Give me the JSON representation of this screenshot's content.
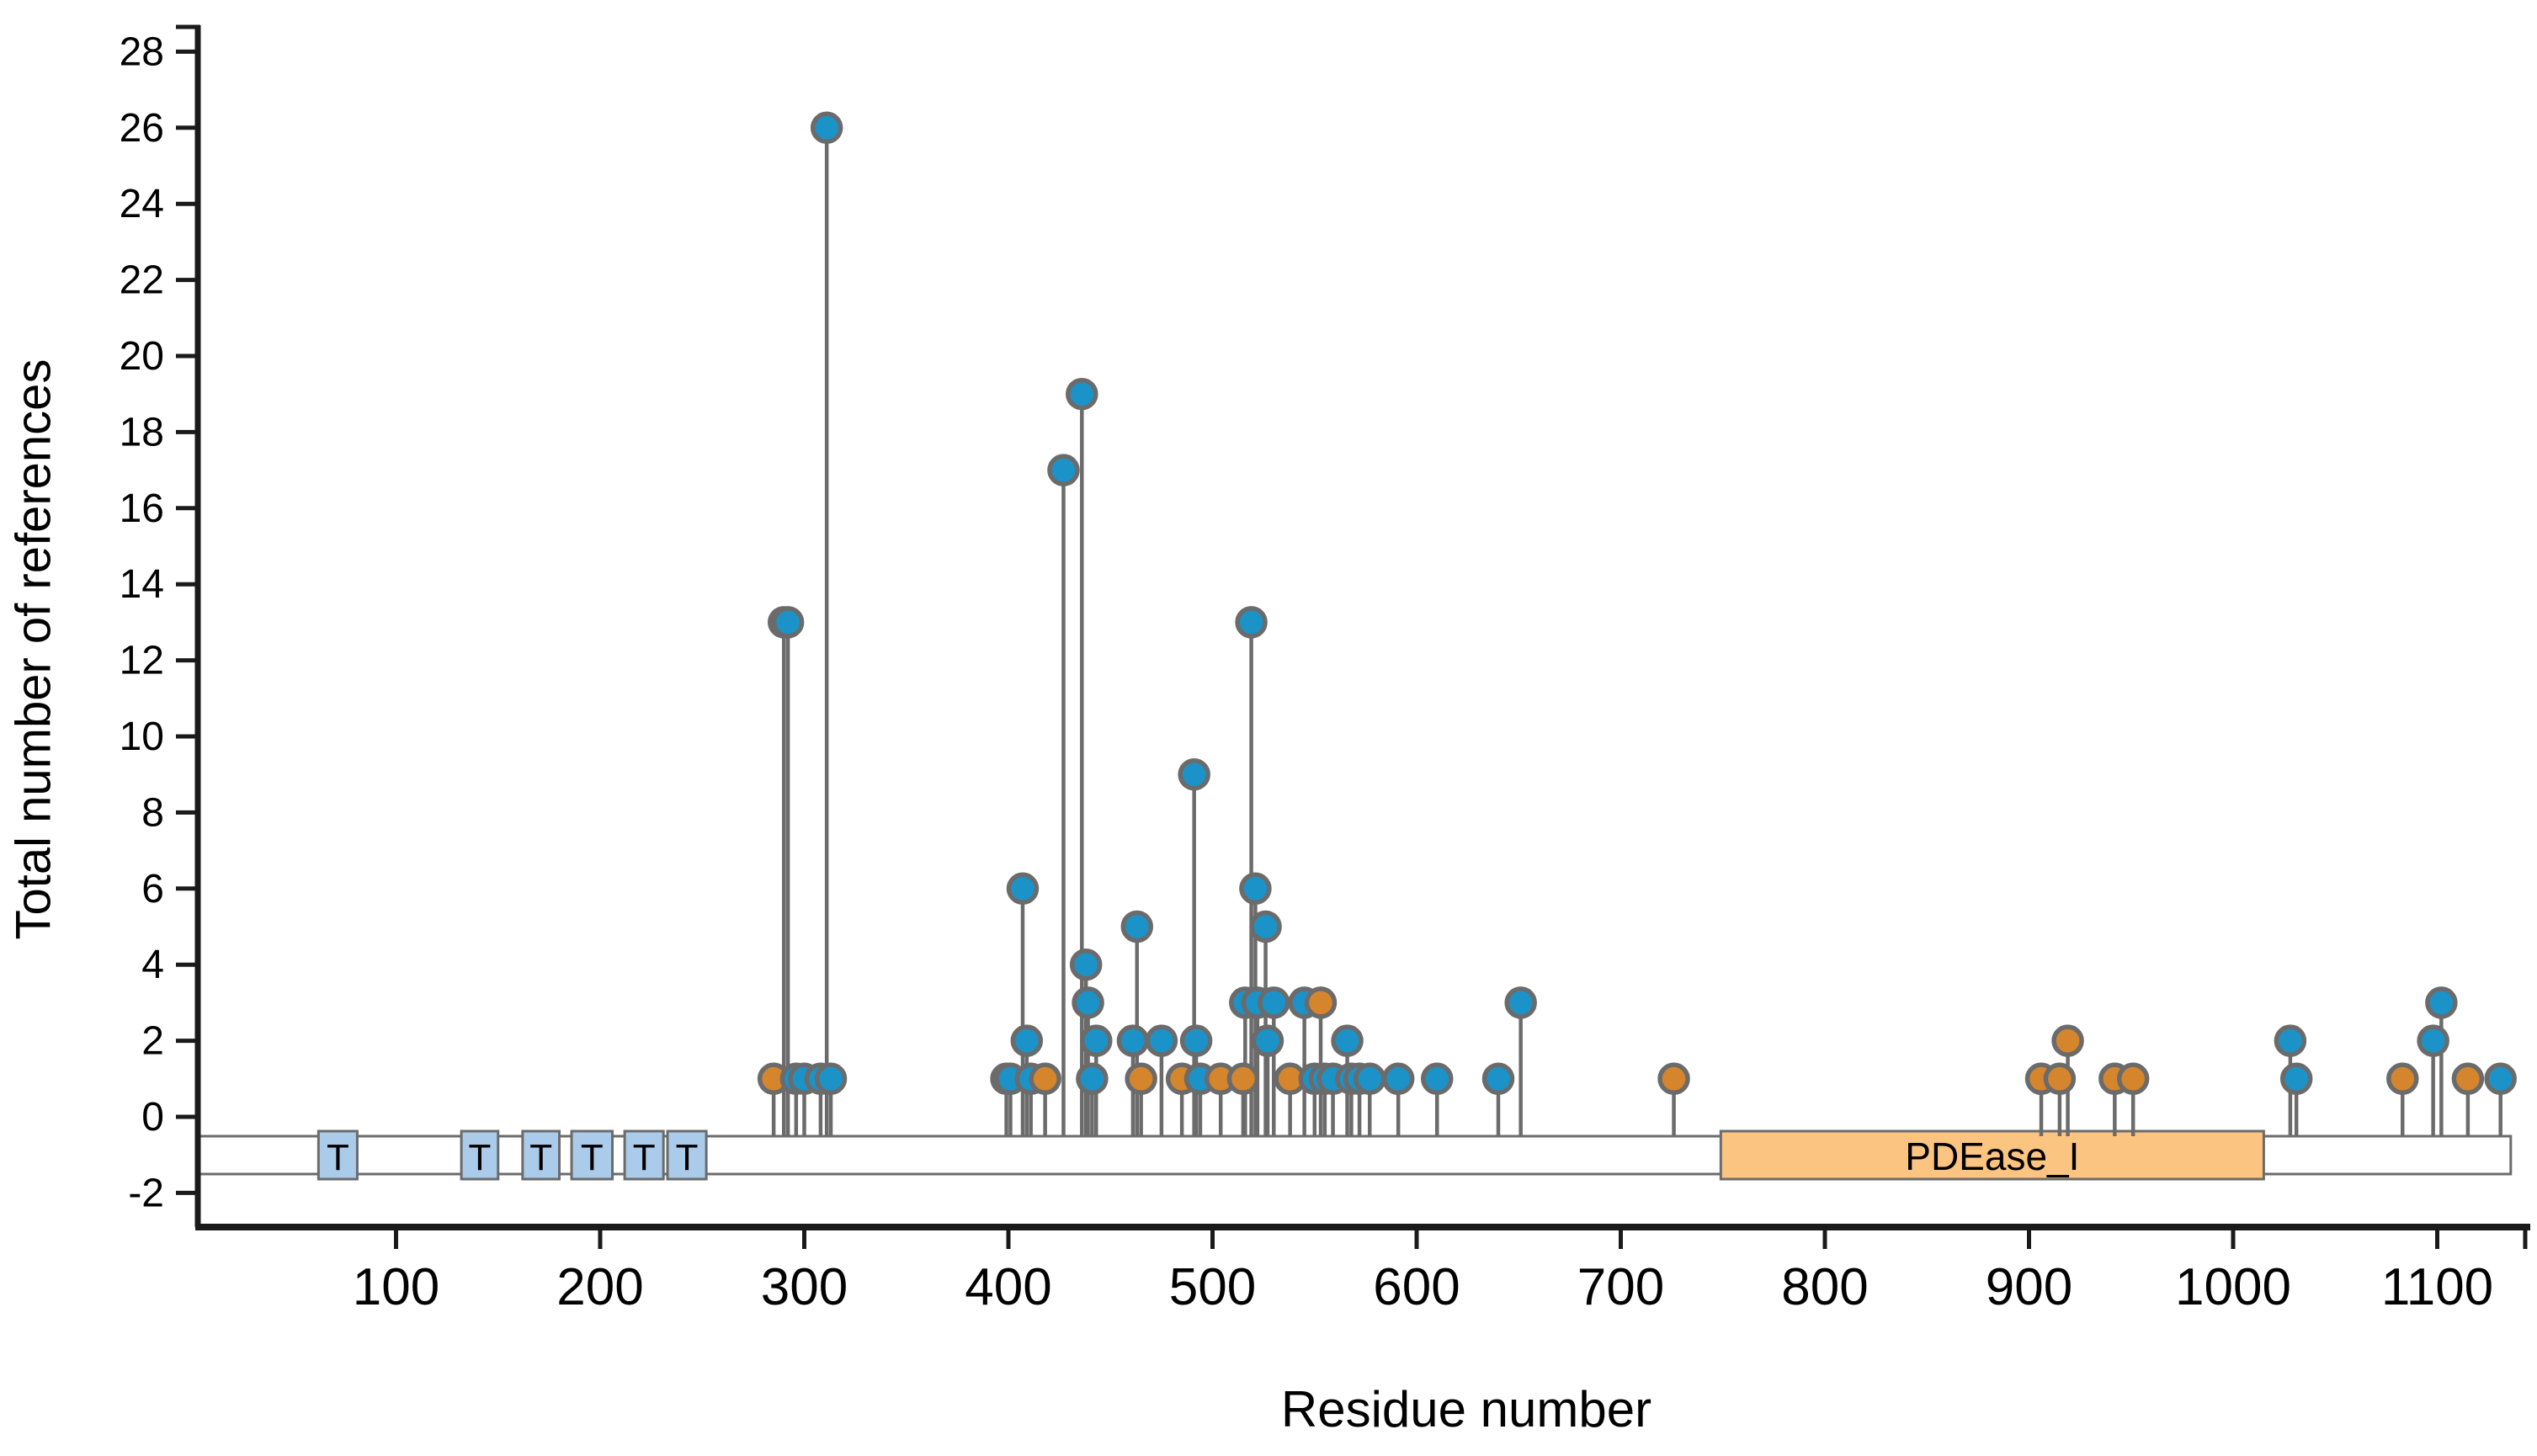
{
  "chart_data": {
    "type": "lollipop",
    "title": "",
    "xlabel": "Residue number",
    "ylabel": "Total number of references",
    "x_ticks": [
      100,
      200,
      300,
      400,
      500,
      600,
      700,
      800,
      900,
      1000,
      1100
    ],
    "y_ticks": [
      -2,
      0,
      2,
      4,
      6,
      8,
      10,
      12,
      14,
      16,
      18,
      20,
      22,
      24,
      26,
      28
    ],
    "xlim": [
      1,
      1145
    ],
    "ylim": [
      -3,
      29
    ],
    "grid": "off",
    "legend": "none",
    "colors": {
      "blue_point": "#1b93c8",
      "orange_point": "#d5862c",
      "stem": "#6b6b6b",
      "point_ring": "#6b6b6b",
      "backbone_fill": "#ffffff",
      "backbone_stroke": "#6b6b6b",
      "t_box_fill": "#aacbe9",
      "domain_fill": "#fcc481",
      "axis": "#1a1a1a",
      "text": "#000000"
    },
    "backbone": {
      "start": 3,
      "end": 1136
    },
    "domains": [
      {
        "label": "PDEase_I",
        "start": 749,
        "end": 1015
      }
    ],
    "motifs": [
      {
        "label": "T",
        "start": 62,
        "end": 81
      },
      {
        "label": "T",
        "start": 132,
        "end": 150
      },
      {
        "label": "T",
        "start": 162,
        "end": 180
      },
      {
        "label": "T",
        "start": 186,
        "end": 206
      },
      {
        "label": "T",
        "start": 212,
        "end": 231
      },
      {
        "label": "T",
        "start": 233,
        "end": 252
      }
    ],
    "points": [
      {
        "residue": 290,
        "count": 13,
        "color": "blue"
      },
      {
        "residue": 292,
        "count": 13,
        "color": "blue"
      },
      {
        "residue": 285,
        "count": 1,
        "color": "orange"
      },
      {
        "residue": 296,
        "count": 1,
        "color": "blue"
      },
      {
        "residue": 300,
        "count": 1,
        "color": "blue"
      },
      {
        "residue": 308,
        "count": 1,
        "color": "blue"
      },
      {
        "residue": 311,
        "count": 26,
        "color": "blue"
      },
      {
        "residue": 313,
        "count": 1,
        "color": "blue"
      },
      {
        "residue": 399,
        "count": 1,
        "color": "blue"
      },
      {
        "residue": 401,
        "count": 1,
        "color": "blue"
      },
      {
        "residue": 407,
        "count": 6,
        "color": "blue"
      },
      {
        "residue": 409,
        "count": 2,
        "color": "blue"
      },
      {
        "residue": 411,
        "count": 1,
        "color": "blue"
      },
      {
        "residue": 418,
        "count": 1,
        "color": "orange"
      },
      {
        "residue": 427,
        "count": 17,
        "color": "blue"
      },
      {
        "residue": 436,
        "count": 19,
        "color": "blue"
      },
      {
        "residue": 438,
        "count": 4,
        "color": "blue"
      },
      {
        "residue": 439,
        "count": 3,
        "color": "blue"
      },
      {
        "residue": 441,
        "count": 1,
        "color": "blue"
      },
      {
        "residue": 443,
        "count": 2,
        "color": "blue"
      },
      {
        "residue": 461,
        "count": 2,
        "color": "blue"
      },
      {
        "residue": 463,
        "count": 5,
        "color": "blue"
      },
      {
        "residue": 465,
        "count": 1,
        "color": "orange"
      },
      {
        "residue": 475,
        "count": 2,
        "color": "blue"
      },
      {
        "residue": 485,
        "count": 1,
        "color": "orange"
      },
      {
        "residue": 491,
        "count": 9,
        "color": "blue"
      },
      {
        "residue": 492,
        "count": 2,
        "color": "blue"
      },
      {
        "residue": 494,
        "count": 1,
        "color": "blue"
      },
      {
        "residue": 504,
        "count": 1,
        "color": "orange"
      },
      {
        "residue": 515,
        "count": 1,
        "color": "orange"
      },
      {
        "residue": 516,
        "count": 3,
        "color": "blue"
      },
      {
        "residue": 522,
        "count": 3,
        "color": "blue"
      },
      {
        "residue": 530,
        "count": 3,
        "color": "blue"
      },
      {
        "residue": 519,
        "count": 13,
        "color": "blue"
      },
      {
        "residue": 521,
        "count": 6,
        "color": "blue"
      },
      {
        "residue": 526,
        "count": 5,
        "color": "blue"
      },
      {
        "residue": 527,
        "count": 2,
        "color": "blue"
      },
      {
        "residue": 538,
        "count": 1,
        "color": "orange"
      },
      {
        "residue": 545,
        "count": 3,
        "color": "blue"
      },
      {
        "residue": 550,
        "count": 1,
        "color": "blue"
      },
      {
        "residue": 553,
        "count": 3,
        "color": "orange"
      },
      {
        "residue": 555,
        "count": 1,
        "color": "blue"
      },
      {
        "residue": 559,
        "count": 1,
        "color": "blue"
      },
      {
        "residue": 566,
        "count": 2,
        "color": "blue"
      },
      {
        "residue": 568,
        "count": 1,
        "color": "blue"
      },
      {
        "residue": 572,
        "count": 1,
        "color": "blue"
      },
      {
        "residue": 577,
        "count": 1,
        "color": "blue"
      },
      {
        "residue": 591,
        "count": 1,
        "color": "blue"
      },
      {
        "residue": 610,
        "count": 1,
        "color": "blue"
      },
      {
        "residue": 640,
        "count": 1,
        "color": "blue"
      },
      {
        "residue": 651,
        "count": 3,
        "color": "blue"
      },
      {
        "residue": 726,
        "count": 1,
        "color": "orange"
      },
      {
        "residue": 906,
        "count": 1,
        "color": "orange"
      },
      {
        "residue": 915,
        "count": 1,
        "color": "orange"
      },
      {
        "residue": 919,
        "count": 2,
        "color": "orange"
      },
      {
        "residue": 942,
        "count": 1,
        "color": "orange"
      },
      {
        "residue": 951,
        "count": 1,
        "color": "orange"
      },
      {
        "residue": 1028,
        "count": 2,
        "color": "blue"
      },
      {
        "residue": 1031,
        "count": 1,
        "color": "blue"
      },
      {
        "residue": 1083,
        "count": 1,
        "color": "orange"
      },
      {
        "residue": 1098,
        "count": 2,
        "color": "blue"
      },
      {
        "residue": 1102,
        "count": 3,
        "color": "blue"
      },
      {
        "residue": 1115,
        "count": 1,
        "color": "orange"
      },
      {
        "residue": 1131,
        "count": 1,
        "color": "blue"
      }
    ]
  }
}
